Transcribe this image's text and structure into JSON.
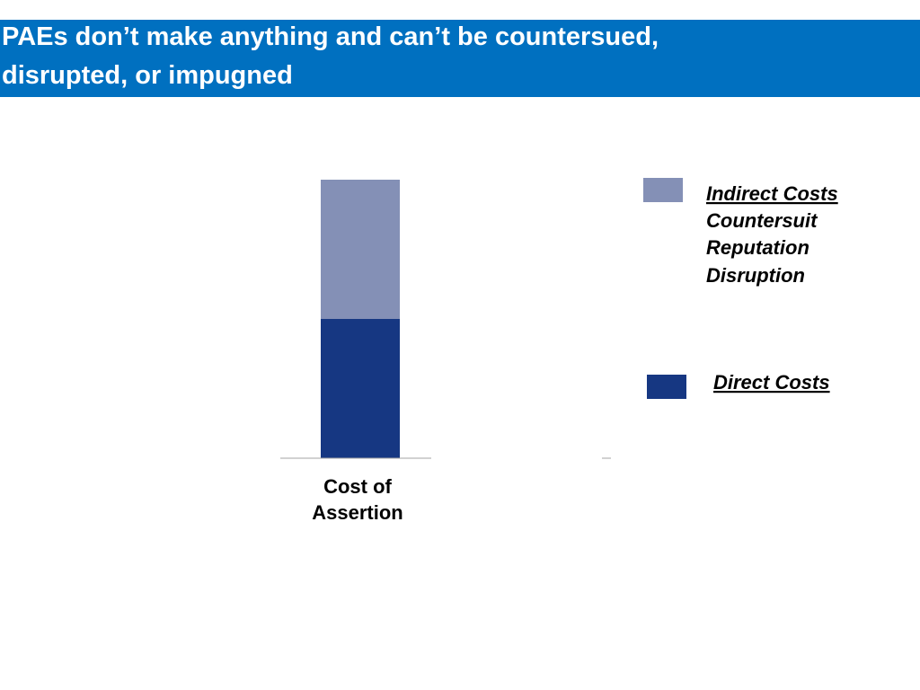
{
  "slide": {
    "title": "PAEs don’t make anything and can’t be countersued,\ndisrupted, or impugned"
  },
  "colors": {
    "title_bar": "#0070c0",
    "direct_costs": "#163782",
    "indirect_costs": "#8490b6"
  },
  "chart_data": {
    "type": "bar",
    "stacked": true,
    "categories": [
      "Cost of Assertion"
    ],
    "category_label_lines": [
      "Cost of",
      "Assertion"
    ],
    "series": [
      {
        "name": "Direct Costs",
        "values": [
          1
        ]
      },
      {
        "name": "Indirect Costs",
        "values": [
          1
        ]
      }
    ],
    "ylim": [
      0,
      2
    ],
    "grid": false,
    "legend_position": "right",
    "legend": {
      "indirect": {
        "heading": "Indirect Costs",
        "items": [
          "Countersuit",
          "Reputation",
          "Disruption"
        ]
      },
      "direct": {
        "heading": "Direct Costs"
      }
    }
  }
}
